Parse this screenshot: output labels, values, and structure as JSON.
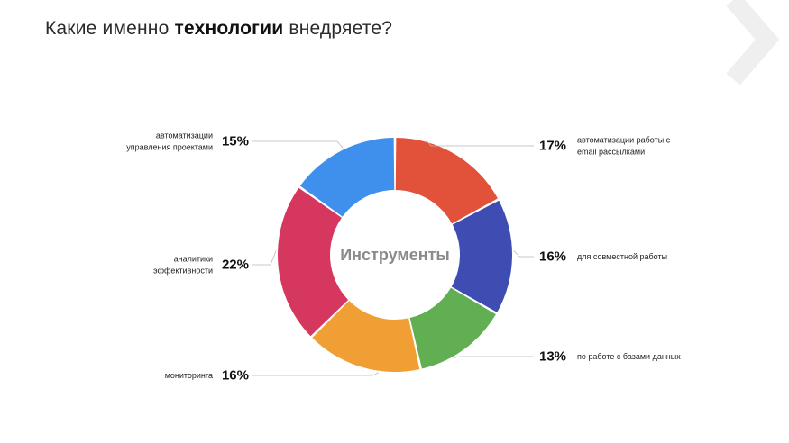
{
  "title": {
    "prefix": "Какие именно ",
    "bold": "технологии",
    "suffix": " внедряете?"
  },
  "chart_data": {
    "type": "pie",
    "donut": true,
    "center_label": "Инструменты",
    "slices": [
      {
        "label_lines": [
          "автоматизации работы с",
          "email рассылками"
        ],
        "value": 17,
        "value_label": "17%",
        "color": "#E2513A"
      },
      {
        "label_lines": [
          "для совместной работы"
        ],
        "value": 16,
        "value_label": "16%",
        "color": "#3F4DB3"
      },
      {
        "label_lines": [
          "по работе с базами данных"
        ],
        "value": 13,
        "value_label": "13%",
        "color": "#62AE52"
      },
      {
        "label_lines": [
          "мониторинга"
        ],
        "value": 16,
        "value_label": "16%",
        "color": "#F09F35"
      },
      {
        "label_lines": [
          "аналитики",
          "эффективности"
        ],
        "value": 22,
        "value_label": "22%",
        "color": "#D6375F"
      },
      {
        "label_lines": [
          "автоматизации",
          "управления проектами"
        ],
        "value": 15,
        "value_label": "15%",
        "color": "#3E90EC"
      }
    ]
  },
  "decor": {
    "chevron_color": "#EFEFEF"
  }
}
